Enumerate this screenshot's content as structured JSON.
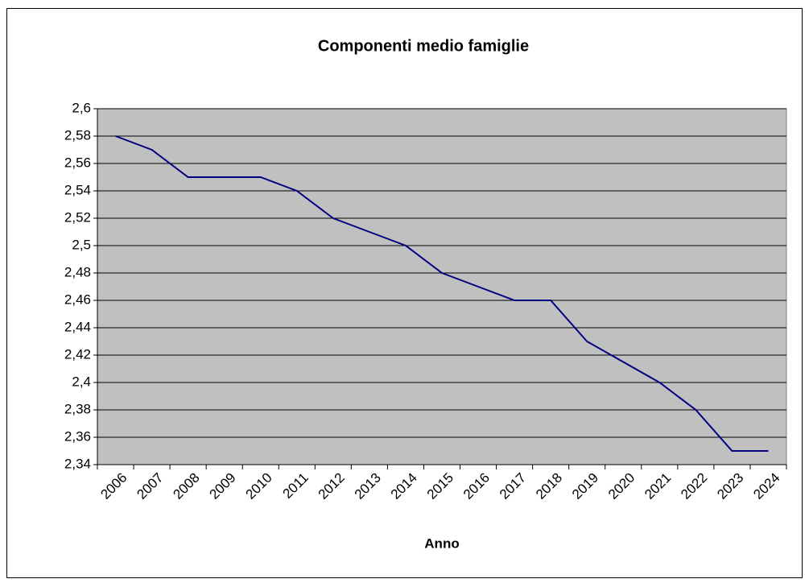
{
  "chart_data": {
    "type": "line",
    "title": "Componenti medio famiglie",
    "x_label": "Anno",
    "categories": [
      "2006",
      "2007",
      "2008",
      "2009",
      "2010",
      "2011",
      "2012",
      "2013",
      "2014",
      "2015",
      "2016",
      "2017",
      "2018",
      "2019",
      "2020",
      "2021",
      "2022",
      "2023",
      "2024"
    ],
    "values": [
      2.58,
      2.57,
      2.55,
      2.55,
      2.55,
      2.54,
      2.52,
      2.51,
      2.5,
      2.48,
      2.47,
      2.46,
      2.46,
      2.43,
      2.415,
      2.4,
      2.38,
      2.35,
      2.35
    ],
    "color": "#000080",
    "ylim": [
      2.34,
      2.6
    ],
    "yticks": [
      {
        "value": 2.34,
        "label": "2,34"
      },
      {
        "value": 2.36,
        "label": "2,36"
      },
      {
        "value": 2.38,
        "label": "2,38"
      },
      {
        "value": 2.4,
        "label": "2,4"
      },
      {
        "value": 2.42,
        "label": "2,42"
      },
      {
        "value": 2.44,
        "label": "2,44"
      },
      {
        "value": 2.46,
        "label": "2,46"
      },
      {
        "value": 2.48,
        "label": "2,48"
      },
      {
        "value": 2.5,
        "label": "2,5"
      },
      {
        "value": 2.52,
        "label": "2,52"
      },
      {
        "value": 2.54,
        "label": "2,54"
      },
      {
        "value": 2.56,
        "label": "2,56"
      },
      {
        "value": 2.58,
        "label": "2,58"
      },
      {
        "value": 2.6,
        "label": "2,6"
      }
    ],
    "grid": true
  }
}
